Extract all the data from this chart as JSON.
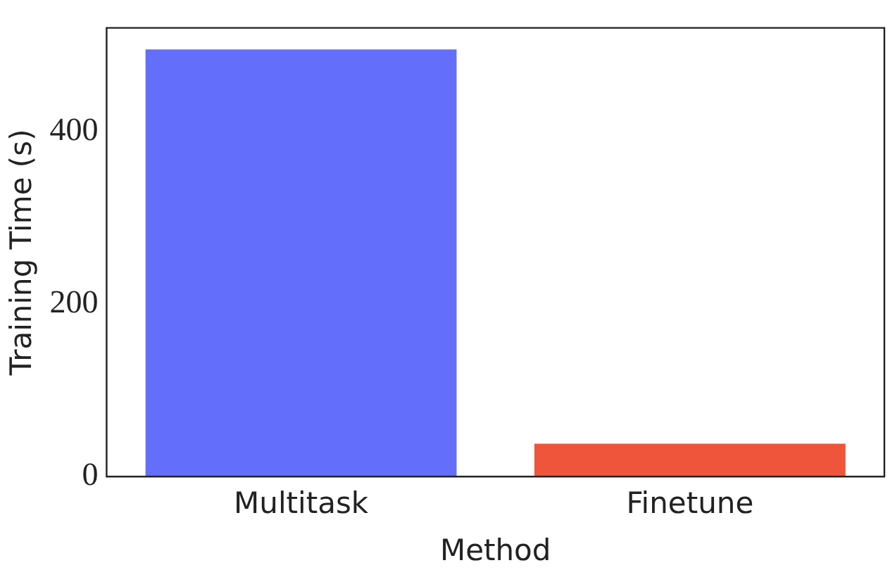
{
  "chart_data": {
    "type": "bar",
    "xlabel": "Method",
    "ylabel": "Training Time (s)",
    "categories": [
      "Multitask",
      "Finetune"
    ],
    "values": [
      495,
      38
    ],
    "colors": [
      "#636efa",
      "#ef553b"
    ],
    "ylim": [
      0,
      520
    ],
    "yticks": [
      0,
      200,
      400
    ],
    "grid": false,
    "legend": false
  }
}
